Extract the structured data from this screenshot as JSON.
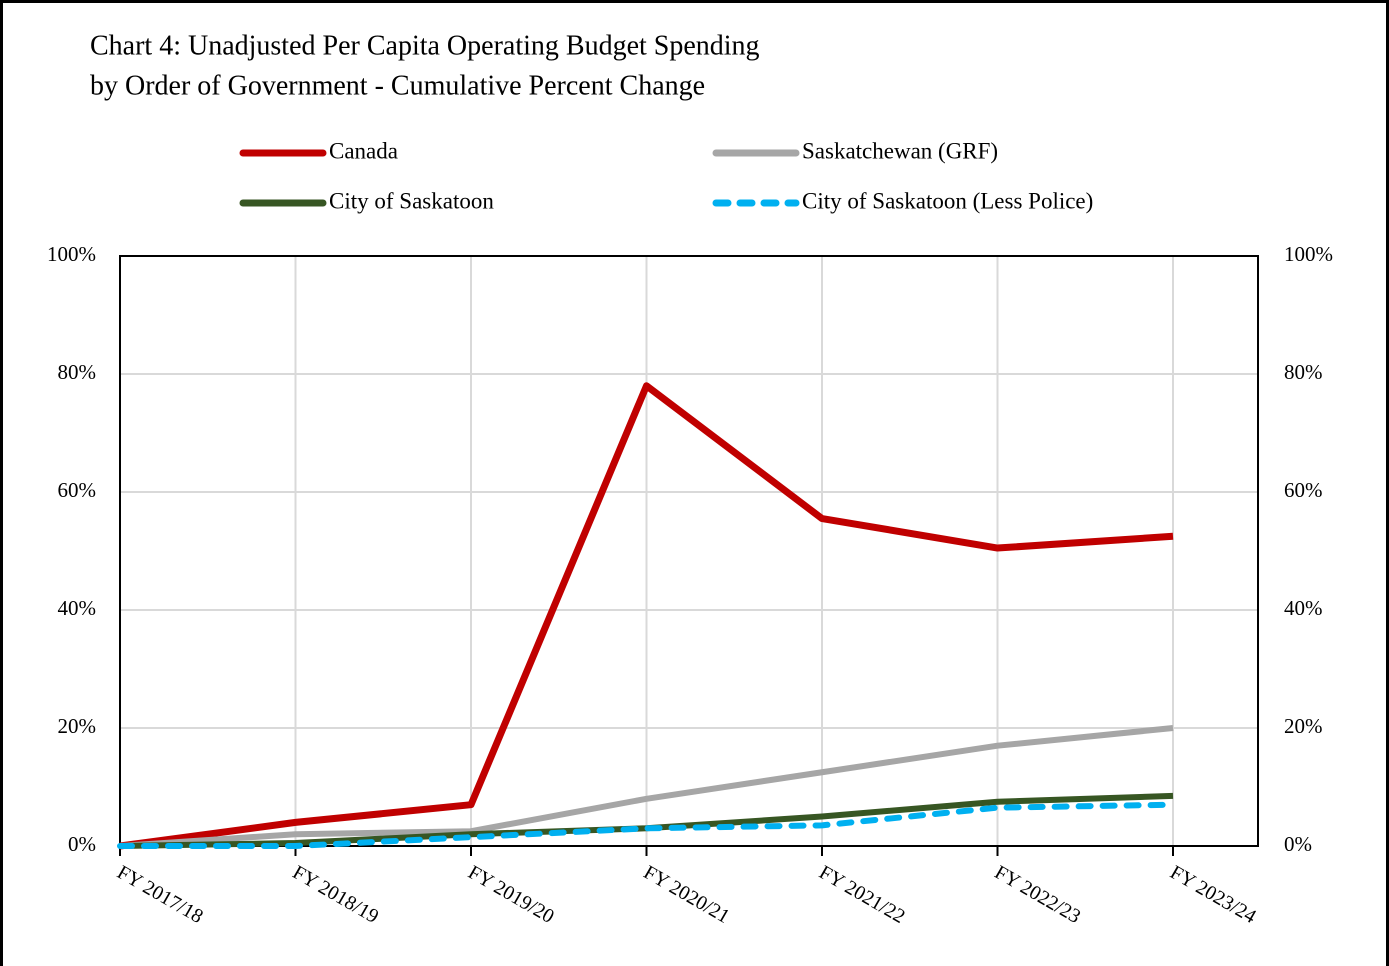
{
  "chart_data": {
    "type": "line",
    "title": [
      "Chart 4: Unadjusted Per Capita Operating Budget Spending",
      "by Order of Government - Cumulative Percent Change"
    ],
    "categories": [
      "FY 2017/18",
      "FY 2018/19",
      "FY 2019/20",
      "FY 2020/21",
      "FY 2021/22",
      "FY 2022/23",
      "FY 2023/24"
    ],
    "series": [
      {
        "name": "Canada",
        "color": "#c00000",
        "values": [
          0,
          4,
          7,
          78,
          55.5,
          50.5,
          52.5
        ]
      },
      {
        "name": "Saskatchewan (GRF)",
        "color": "#a6a6a6",
        "values": [
          0,
          2,
          2.5,
          8,
          12.5,
          17,
          20
        ]
      },
      {
        "name": "City of Saskatoon",
        "color": "#375623",
        "values": [
          0,
          0.5,
          2,
          3,
          5,
          7.5,
          8.5
        ]
      },
      {
        "name": "City of Saskatoon (Less Police)",
        "color": "#00b0f0",
        "dash": true,
        "values": [
          0,
          0,
          1.5,
          3,
          3.5,
          6.5,
          7
        ]
      }
    ],
    "ylim": [
      0,
      100
    ],
    "yticks": [
      {
        "value": 0,
        "label": "0%"
      },
      {
        "value": 20,
        "label": "20%"
      },
      {
        "value": 40,
        "label": "40%"
      },
      {
        "value": 60,
        "label": "60%"
      },
      {
        "value": 80,
        "label": "80%"
      },
      {
        "value": 100,
        "label": "100%"
      }
    ],
    "y2lim": [
      0,
      100
    ],
    "y2ticks": [
      {
        "value": 0,
        "label": "0%"
      },
      {
        "value": 20,
        "label": "20%"
      },
      {
        "value": 40,
        "label": "40%"
      },
      {
        "value": 60,
        "label": "60%"
      },
      {
        "value": 80,
        "label": "80%"
      },
      {
        "value": 100,
        "label": "100%"
      }
    ],
    "grid": true
  }
}
